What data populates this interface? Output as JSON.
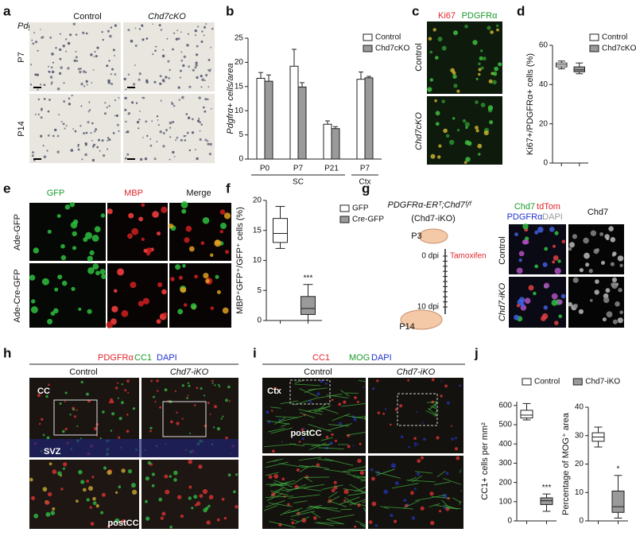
{
  "panel_labels": [
    "a",
    "b",
    "c",
    "d",
    "e",
    "f",
    "g",
    "h",
    "i",
    "j"
  ],
  "panels": {
    "a": {
      "gene": "Pdgfrα",
      "columns": [
        "Control",
        "Chd7cKO"
      ],
      "rows": [
        "P7",
        "P14"
      ]
    },
    "c": {
      "stains": [
        "Ki67",
        "PDGFRα"
      ],
      "rows": [
        "Control",
        "Chd7cKO"
      ]
    },
    "e": {
      "columns": [
        "GFP",
        "MBP",
        "Merge"
      ],
      "rows": [
        "Ade-GFP",
        "Ade-Cre-GFP"
      ]
    },
    "g": {
      "genotype": "PDGFRα-ERᵀ;Chd7ᶠ/ᶠ",
      "genotype_short": "(Chd7-iKO)",
      "timeline": [
        "P3",
        "0 dpi",
        "Tamoxifen",
        "10 dpi",
        "P14"
      ],
      "stains": [
        "Chd7",
        "tdTom",
        "PDGFRα",
        "DAPI"
      ],
      "column2": "Chd7",
      "rows": [
        "Control",
        "Chd7-iKO"
      ]
    },
    "h": {
      "stains": [
        "PDGFRα",
        "CC1",
        "DAPI"
      ],
      "columns": [
        "Control",
        "Chd7-iKO"
      ],
      "regions": [
        "CC",
        "SVZ",
        "postCC"
      ]
    },
    "i": {
      "stains": [
        "CC1",
        "MOG",
        "DAPI"
      ],
      "columns": [
        "Control",
        "Chd7-iKO"
      ],
      "regions": [
        "Ctx",
        "postCC"
      ]
    }
  },
  "chart_data": [
    {
      "type": "bar",
      "ylabel": "Pdgfrα+ cells/area",
      "categories": [
        "P0",
        "P7",
        "P21",
        "P7"
      ],
      "group_labels": [
        "SC",
        "SC",
        "SC",
        "Ctx"
      ],
      "series": [
        {
          "name": "Control",
          "color": "#ffffff",
          "values": [
            16.7,
            19.2,
            7.2,
            16.5
          ],
          "errors": [
            1.2,
            3.5,
            0.7,
            1.5
          ]
        },
        {
          "name": "Chd7cKO",
          "color": "#9a9a9a",
          "values": [
            16.1,
            14.9,
            6.3,
            16.8
          ],
          "errors": [
            1.3,
            0.9,
            0.4,
            0.3
          ]
        }
      ],
      "ylim": [
        0,
        25
      ],
      "yticks": [
        0,
        5,
        10,
        15,
        20,
        25
      ]
    },
    {
      "type": "box",
      "ylabel": "Ki67+/PDGFRα+ cells (%)",
      "series": [
        {
          "name": "Control",
          "color": "#ffffff",
          "values": [
            48,
            49,
            50,
            51,
            52
          ]
        },
        {
          "name": "Chd7cKO",
          "color": "#9a9a9a",
          "values": [
            45.5,
            46.5,
            47.5,
            49,
            51
          ]
        }
      ],
      "ylim": [
        0,
        60
      ],
      "yticks": [
        0,
        20,
        40,
        60
      ]
    },
    {
      "type": "box",
      "ylabel": "MBP⁺GFP⁺/GFP⁺ cells (%)",
      "annotation": "***",
      "series": [
        {
          "name": "GFP",
          "color": "#ffffff",
          "values": [
            12,
            13,
            14.5,
            17,
            19
          ]
        },
        {
          "name": "Cre-GFP",
          "color": "#9a9a9a",
          "values": [
            0,
            1,
            2,
            4,
            6
          ]
        }
      ],
      "ylim": [
        0,
        20
      ],
      "yticks": [
        0,
        5,
        10,
        15,
        20
      ]
    },
    {
      "type": "box",
      "ylabel": "CC1+ cells per mm²",
      "annotation": "***",
      "series": [
        {
          "name": "Control",
          "color": "#ffffff",
          "values": [
            525,
            535,
            550,
            575,
            610
          ]
        },
        {
          "name": "Chd7-iKO",
          "color": "#9a9a9a",
          "values": [
            50,
            85,
            105,
            120,
            140
          ]
        }
      ],
      "ylim": [
        0,
        620
      ],
      "yticks": [
        0,
        100,
        200,
        300,
        400,
        500,
        600
      ]
    },
    {
      "type": "box",
      "ylabel": "Percentage of MOG⁺ area",
      "annotation": "*",
      "series": [
        {
          "color": "#ffffff",
          "values": [
            26,
            28,
            29.5,
            31,
            33
          ]
        },
        {
          "color": "#9a9a9a",
          "values": [
            1,
            3,
            5,
            10.5,
            16
          ]
        }
      ],
      "ylim": [
        0,
        40
      ],
      "yticks": [
        0,
        10,
        20,
        30,
        40
      ]
    }
  ]
}
